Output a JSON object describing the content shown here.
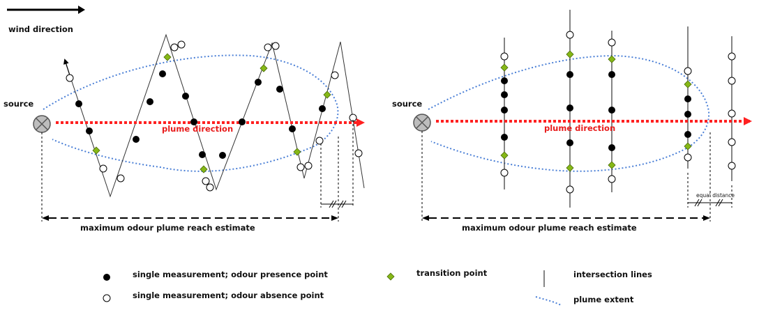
{
  "labels": {
    "wind_direction": "wind direction",
    "source": "source",
    "plume_direction": "plume direction",
    "max_reach": "maximum odour plume reach estimate",
    "equal_distance": "equal distance"
  },
  "legend": {
    "presence": "single measurement; odour presence point",
    "absence": "single measurement; odour absence point",
    "transition": "transition point",
    "intersection": "intersection lines",
    "plume_extent": "plume extent"
  },
  "colors": {
    "presence": "#000000",
    "absence": "#ffffff",
    "transition": "#86b817",
    "plume_arrow": "#ff2020",
    "plume_extent": "#4a7fd6",
    "source_fill": "#bdbdbd"
  }
}
